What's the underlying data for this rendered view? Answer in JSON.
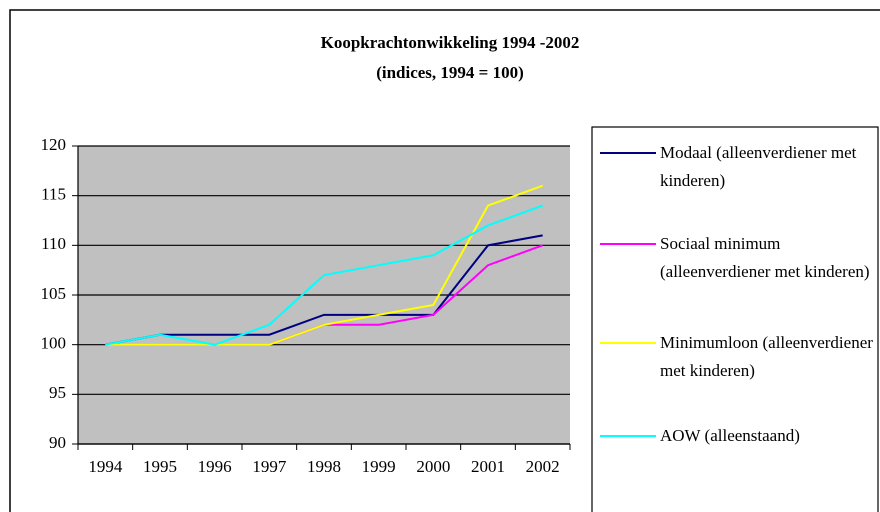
{
  "chart_data": {
    "type": "line",
    "title": "Koopkrachtonwikkeling 1994 -2002",
    "subtitle": "(indices, 1994 = 100)",
    "categories": [
      "1994",
      "1995",
      "1996",
      "1997",
      "1998",
      "1999",
      "2000",
      "2001",
      "2002"
    ],
    "series": [
      {
        "name": "Modaal (alleenverdiener met kinderen)",
        "color": "#000080",
        "values": [
          100,
          101,
          101,
          101,
          103,
          103,
          103,
          110,
          111
        ]
      },
      {
        "name": "Sociaal minimum (alleenverdiener met kinderen)",
        "color": "#ff00ff",
        "values": [
          100,
          100,
          100,
          100,
          102,
          102,
          103,
          108,
          110
        ]
      },
      {
        "name": "Minimumloon (alleenverdiener met kinderen)",
        "color": "#ffff00",
        "values": [
          100,
          100,
          100,
          100,
          102,
          103,
          104,
          114,
          116
        ]
      },
      {
        "name": "AOW (alleenstaand)",
        "color": "#00ffff",
        "values": [
          100,
          101,
          100,
          102,
          107,
          108,
          109,
          112,
          114
        ]
      }
    ],
    "ylim": [
      90,
      120
    ],
    "yticks": [
      90,
      95,
      100,
      105,
      110,
      115,
      120
    ],
    "grid": true,
    "plot_background": "#c0c0c0",
    "legend": "right"
  }
}
